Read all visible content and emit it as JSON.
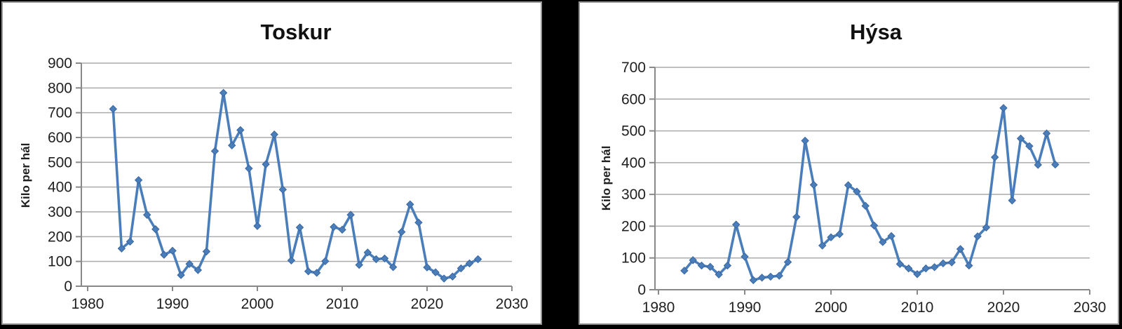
{
  "page": {
    "background": "#000000"
  },
  "styles": {
    "panel_bg": "#ffffff",
    "panel_border": "#979797",
    "series_color": "#4a7eba",
    "marker_stroke": "#3a669f",
    "gridline_color": "#ababab",
    "axis_color": "#898989",
    "tick_label_color": "#1f1f1f",
    "title_color": "#111111"
  },
  "chart_data": [
    {
      "type": "line",
      "title": "Toskur",
      "ylabel": "Kilo per hál",
      "xlabel": "",
      "marker": "diamond",
      "grid": true,
      "legend": false,
      "ylim": [
        0,
        900
      ],
      "ytick_step": 100,
      "yticks": [
        0,
        100,
        200,
        300,
        400,
        500,
        600,
        700,
        800,
        900
      ],
      "xlim": [
        1980,
        2030
      ],
      "xticks": [
        1980,
        1990,
        2000,
        2010,
        2020,
        2030
      ],
      "x": [
        1983,
        1984,
        1985,
        1986,
        1987,
        1988,
        1989,
        1990,
        1991,
        1992,
        1993,
        1994,
        1995,
        1996,
        1997,
        1998,
        1999,
        2000,
        2001,
        2002,
        2003,
        2004,
        2005,
        2006,
        2007,
        2008,
        2009,
        2010,
        2011,
        2012,
        2013,
        2014,
        2015,
        2016,
        2017,
        2018,
        2019,
        2020,
        2021,
        2022,
        2023,
        2024,
        2025,
        2026
      ],
      "y": [
        715,
        152,
        180,
        428,
        288,
        230,
        127,
        143,
        45,
        90,
        65,
        140,
        545,
        780,
        568,
        630,
        475,
        243,
        492,
        612,
        390,
        104,
        237,
        60,
        54,
        101,
        239,
        228,
        288,
        86,
        136,
        109,
        112,
        77,
        219,
        330,
        257,
        76,
        56,
        31,
        39,
        72,
        92,
        109
      ]
    },
    {
      "type": "line",
      "title": "Hýsa",
      "ylabel": "Kilo per hál",
      "xlabel": "",
      "marker": "diamond",
      "grid": true,
      "legend": false,
      "ylim": [
        0,
        700
      ],
      "ytick_step": 100,
      "yticks": [
        0,
        100,
        200,
        300,
        400,
        500,
        600,
        700
      ],
      "xlim": [
        1980,
        2030
      ],
      "xticks": [
        1980,
        1990,
        2000,
        2010,
        2020,
        2030
      ],
      "x": [
        1983,
        1984,
        1985,
        1986,
        1987,
        1988,
        1989,
        1990,
        1991,
        1992,
        1993,
        1994,
        1995,
        1996,
        1997,
        1998,
        1999,
        2000,
        2001,
        2002,
        2003,
        2004,
        2005,
        2006,
        2007,
        2008,
        2009,
        2010,
        2011,
        2012,
        2013,
        2014,
        2015,
        2016,
        2017,
        2018,
        2019,
        2020,
        2021,
        2022,
        2023,
        2024,
        2025,
        2026
      ],
      "y": [
        60,
        93,
        76,
        72,
        48,
        76,
        205,
        104,
        30,
        38,
        41,
        44,
        87,
        229,
        469,
        330,
        139,
        165,
        175,
        329,
        309,
        264,
        202,
        150,
        169,
        81,
        67,
        49,
        67,
        71,
        83,
        86,
        128,
        76,
        168,
        196,
        417,
        572,
        281,
        476,
        452,
        393,
        492,
        394
      ]
    }
  ]
}
